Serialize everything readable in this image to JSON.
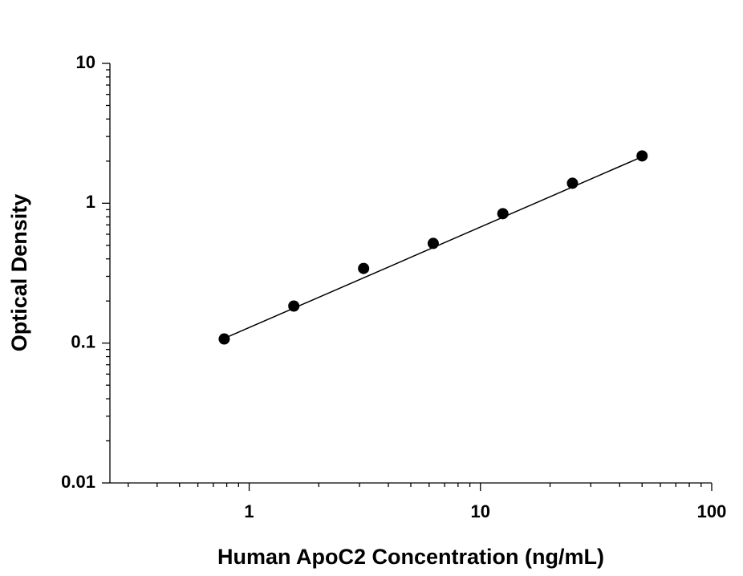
{
  "chart_data": {
    "type": "scatter",
    "x_label": "Human ApoC2 Concentration (ng/mL)",
    "y_label": "Optical Density",
    "x": [
      0.78,
      1.56,
      3.125,
      6.25,
      12.5,
      25,
      50
    ],
    "values": [
      0.107,
      0.184,
      0.342,
      0.516,
      0.842,
      1.39,
      2.18
    ],
    "color": "#000000",
    "fit_line": {
      "x": [
        0.78,
        50
      ],
      "values": [
        0.108,
        2.15
      ]
    },
    "xlog": true,
    "ylog": true,
    "xlim": [
      0.25,
      100
    ],
    "ylim": [
      0.01,
      10
    ],
    "xticks": [
      1,
      10,
      100
    ],
    "yticks": [
      0.01,
      0.1,
      1,
      10
    ],
    "xminorticks": [
      0.3,
      0.4,
      0.5,
      0.6,
      0.7,
      0.8,
      0.9,
      2,
      3,
      4,
      5,
      6,
      7,
      8,
      9,
      20,
      30,
      40,
      50,
      60,
      70,
      80,
      90
    ],
    "yminorticks": [
      0.02,
      0.03,
      0.04,
      0.05,
      0.06,
      0.07,
      0.08,
      0.09,
      0.2,
      0.3,
      0.4,
      0.5,
      0.6,
      0.7,
      0.8,
      0.9,
      2,
      3,
      4,
      5,
      6,
      7,
      8,
      9
    ],
    "grid": false
  }
}
